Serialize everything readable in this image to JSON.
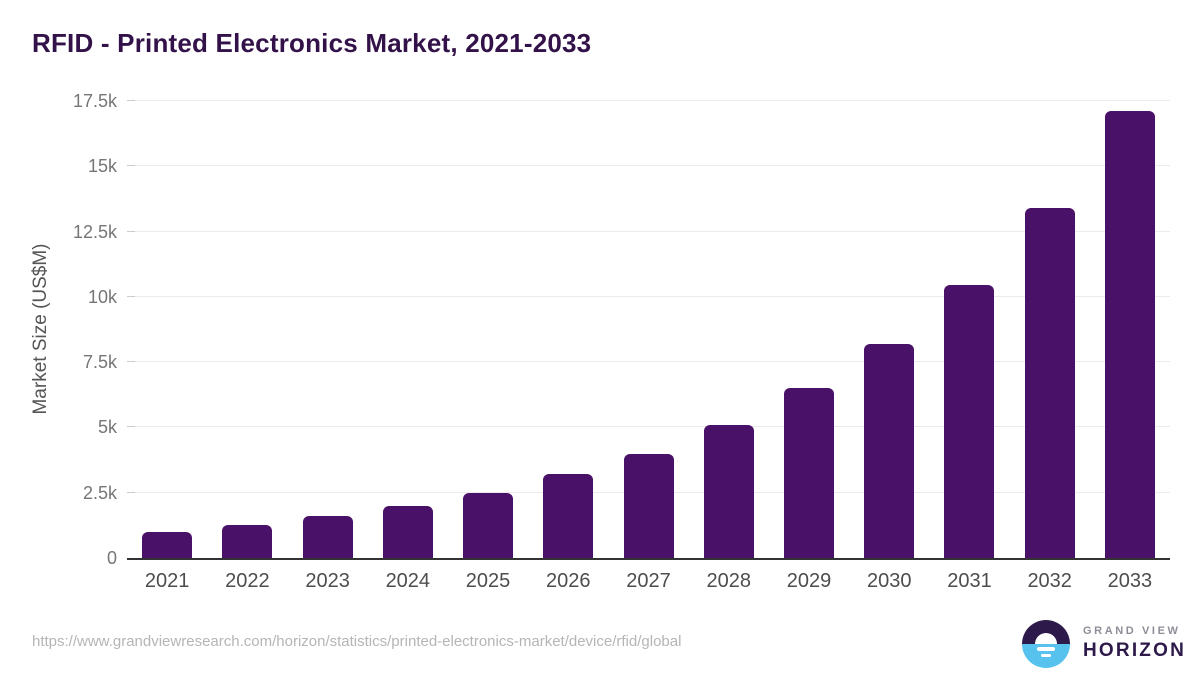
{
  "page": {
    "title": "RFID - Printed Electronics Market, 2021-2033",
    "source_url": "https://www.grandviewresearch.com/horizon/statistics/printed-electronics-market/device/rfid/global"
  },
  "branding": {
    "name_top": "GRAND VIEW",
    "name_bottom": "HORIZON",
    "logo_icon": "sunrise-horizon-icon"
  },
  "colors": {
    "title": "#331249",
    "bar": "#4a1168",
    "gridline": "#ebebeb",
    "axis_line": "#333333",
    "y_tick_label": "#767676",
    "x_tick_label": "#4d4d4d",
    "axis_title": "#555555",
    "source_text": "#b5b5b5",
    "logo_purple": "#2d1a4a",
    "logo_blue": "#57c2ee",
    "brand_gray": "#8e8e99"
  },
  "chart_data": {
    "type": "bar",
    "title": "RFID - Printed Electronics Market, 2021-2033",
    "categories": [
      "2021",
      "2022",
      "2023",
      "2024",
      "2025",
      "2026",
      "2027",
      "2028",
      "2029",
      "2030",
      "2031",
      "2032",
      "2033"
    ],
    "values": [
      1000,
      1250,
      1600,
      2000,
      2500,
      3200,
      4000,
      5100,
      6500,
      8200,
      10450,
      13400,
      17100
    ],
    "xlabel": "",
    "ylabel": "Market Size (US$M)",
    "ylim": [
      0,
      17500
    ],
    "yticks": [
      {
        "value": 0,
        "label": "0"
      },
      {
        "value": 2500,
        "label": "2.5k"
      },
      {
        "value": 5000,
        "label": "5k"
      },
      {
        "value": 7500,
        "label": "7.5k"
      },
      {
        "value": 10000,
        "label": "10k"
      },
      {
        "value": 12500,
        "label": "12.5k"
      },
      {
        "value": 15000,
        "label": "15k"
      },
      {
        "value": 17500,
        "label": "17.5k"
      }
    ],
    "grid": "horizontal",
    "legend": "none",
    "bar_color": "#4a1168"
  }
}
